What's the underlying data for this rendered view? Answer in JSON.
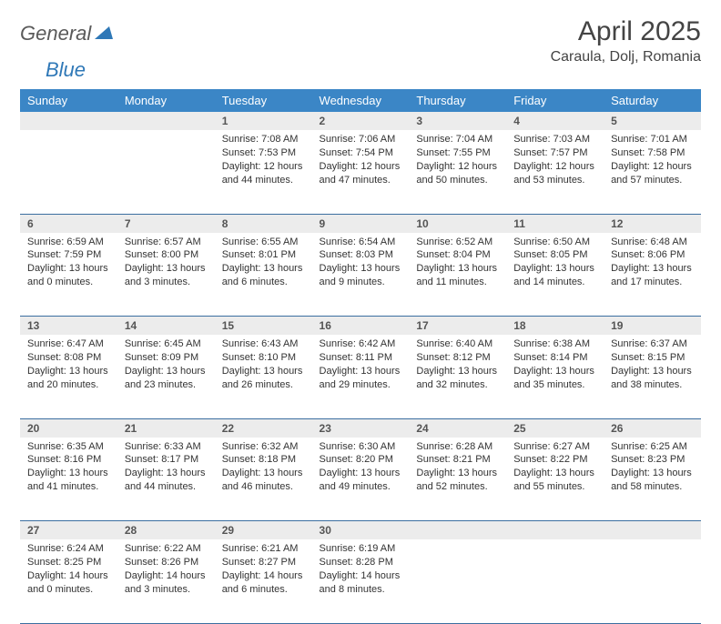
{
  "brand": {
    "part1": "General",
    "part2": "Blue"
  },
  "title": "April 2025",
  "location": "Caraula, Dolj, Romania",
  "colors": {
    "header_bg": "#3b86c6",
    "header_fg": "#ffffff",
    "daynum_bg": "#ececec",
    "daynum_fg": "#555555",
    "rule": "#3b6ea0",
    "logo_gray": "#5a5a5a",
    "logo_blue": "#2f78b7"
  },
  "day_headers": [
    "Sunday",
    "Monday",
    "Tuesday",
    "Wednesday",
    "Thursday",
    "Friday",
    "Saturday"
  ],
  "weeks": [
    [
      null,
      null,
      {
        "n": "1",
        "sr": "7:08 AM",
        "ss": "7:53 PM",
        "dl": "12 hours and 44 minutes."
      },
      {
        "n": "2",
        "sr": "7:06 AM",
        "ss": "7:54 PM",
        "dl": "12 hours and 47 minutes."
      },
      {
        "n": "3",
        "sr": "7:04 AM",
        "ss": "7:55 PM",
        "dl": "12 hours and 50 minutes."
      },
      {
        "n": "4",
        "sr": "7:03 AM",
        "ss": "7:57 PM",
        "dl": "12 hours and 53 minutes."
      },
      {
        "n": "5",
        "sr": "7:01 AM",
        "ss": "7:58 PM",
        "dl": "12 hours and 57 minutes."
      }
    ],
    [
      {
        "n": "6",
        "sr": "6:59 AM",
        "ss": "7:59 PM",
        "dl": "13 hours and 0 minutes."
      },
      {
        "n": "7",
        "sr": "6:57 AM",
        "ss": "8:00 PM",
        "dl": "13 hours and 3 minutes."
      },
      {
        "n": "8",
        "sr": "6:55 AM",
        "ss": "8:01 PM",
        "dl": "13 hours and 6 minutes."
      },
      {
        "n": "9",
        "sr": "6:54 AM",
        "ss": "8:03 PM",
        "dl": "13 hours and 9 minutes."
      },
      {
        "n": "10",
        "sr": "6:52 AM",
        "ss": "8:04 PM",
        "dl": "13 hours and 11 minutes."
      },
      {
        "n": "11",
        "sr": "6:50 AM",
        "ss": "8:05 PM",
        "dl": "13 hours and 14 minutes."
      },
      {
        "n": "12",
        "sr": "6:48 AM",
        "ss": "8:06 PM",
        "dl": "13 hours and 17 minutes."
      }
    ],
    [
      {
        "n": "13",
        "sr": "6:47 AM",
        "ss": "8:08 PM",
        "dl": "13 hours and 20 minutes."
      },
      {
        "n": "14",
        "sr": "6:45 AM",
        "ss": "8:09 PM",
        "dl": "13 hours and 23 minutes."
      },
      {
        "n": "15",
        "sr": "6:43 AM",
        "ss": "8:10 PM",
        "dl": "13 hours and 26 minutes."
      },
      {
        "n": "16",
        "sr": "6:42 AM",
        "ss": "8:11 PM",
        "dl": "13 hours and 29 minutes."
      },
      {
        "n": "17",
        "sr": "6:40 AM",
        "ss": "8:12 PM",
        "dl": "13 hours and 32 minutes."
      },
      {
        "n": "18",
        "sr": "6:38 AM",
        "ss": "8:14 PM",
        "dl": "13 hours and 35 minutes."
      },
      {
        "n": "19",
        "sr": "6:37 AM",
        "ss": "8:15 PM",
        "dl": "13 hours and 38 minutes."
      }
    ],
    [
      {
        "n": "20",
        "sr": "6:35 AM",
        "ss": "8:16 PM",
        "dl": "13 hours and 41 minutes."
      },
      {
        "n": "21",
        "sr": "6:33 AM",
        "ss": "8:17 PM",
        "dl": "13 hours and 44 minutes."
      },
      {
        "n": "22",
        "sr": "6:32 AM",
        "ss": "8:18 PM",
        "dl": "13 hours and 46 minutes."
      },
      {
        "n": "23",
        "sr": "6:30 AM",
        "ss": "8:20 PM",
        "dl": "13 hours and 49 minutes."
      },
      {
        "n": "24",
        "sr": "6:28 AM",
        "ss": "8:21 PM",
        "dl": "13 hours and 52 minutes."
      },
      {
        "n": "25",
        "sr": "6:27 AM",
        "ss": "8:22 PM",
        "dl": "13 hours and 55 minutes."
      },
      {
        "n": "26",
        "sr": "6:25 AM",
        "ss": "8:23 PM",
        "dl": "13 hours and 58 minutes."
      }
    ],
    [
      {
        "n": "27",
        "sr": "6:24 AM",
        "ss": "8:25 PM",
        "dl": "14 hours and 0 minutes."
      },
      {
        "n": "28",
        "sr": "6:22 AM",
        "ss": "8:26 PM",
        "dl": "14 hours and 3 minutes."
      },
      {
        "n": "29",
        "sr": "6:21 AM",
        "ss": "8:27 PM",
        "dl": "14 hours and 6 minutes."
      },
      {
        "n": "30",
        "sr": "6:19 AM",
        "ss": "8:28 PM",
        "dl": "14 hours and 8 minutes."
      },
      null,
      null,
      null
    ]
  ],
  "labels": {
    "sunrise": "Sunrise:",
    "sunset": "Sunset:",
    "daylight": "Daylight:"
  }
}
